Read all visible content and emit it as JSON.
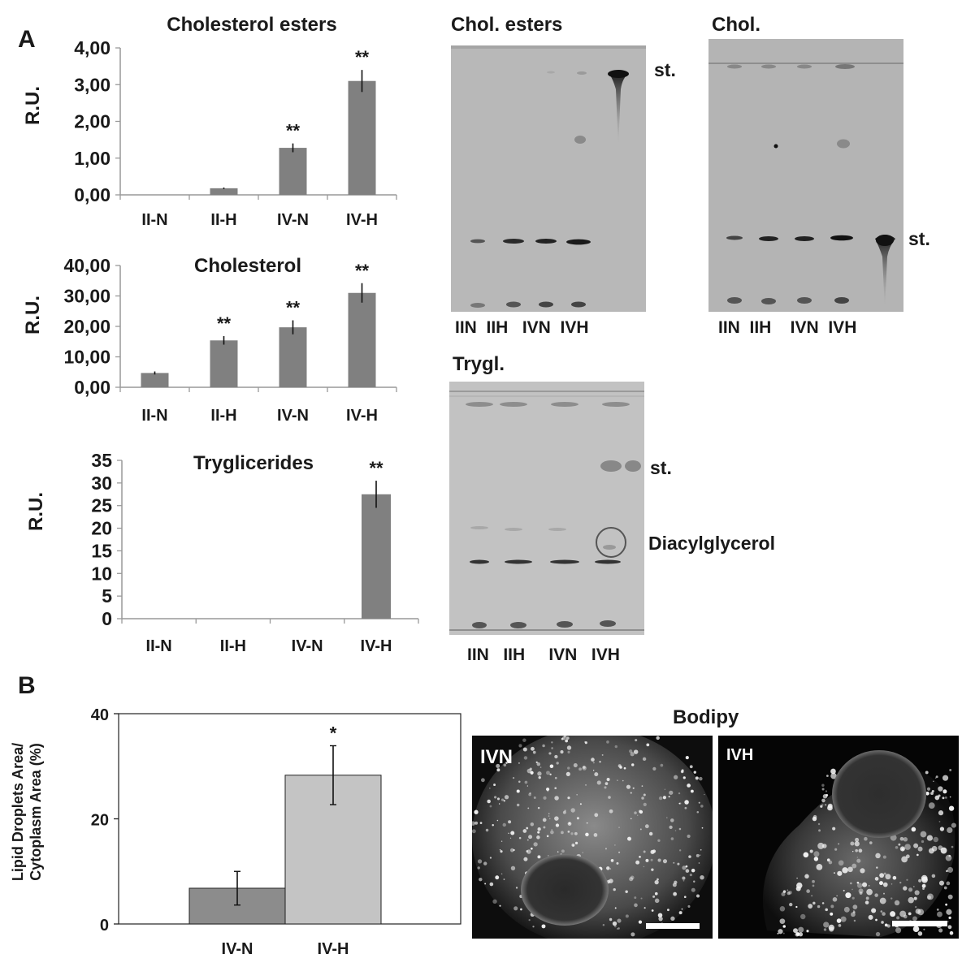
{
  "panels": {
    "a": "A",
    "b": "B"
  },
  "chart_data": [
    {
      "type": "bar",
      "title": "Cholesterol esters",
      "categories": [
        "II-N",
        "II-H",
        "IV-N",
        "IV-H"
      ],
      "values": [
        0.0,
        0.18,
        1.28,
        3.1
      ],
      "errors": [
        0.0,
        0.02,
        0.12,
        0.3
      ],
      "annotations": [
        "",
        "",
        "**",
        "**"
      ],
      "ylabel": "R.U.",
      "ylim": [
        0,
        4
      ],
      "yticks": [
        "0,00",
        "1,00",
        "2,00",
        "3,00",
        "4,00"
      ],
      "grid": false,
      "bar_color": "#808080"
    },
    {
      "type": "bar",
      "title": "Cholesterol",
      "categories": [
        "II-N",
        "II-H",
        "IV-N",
        "IV-H"
      ],
      "values": [
        4.7,
        15.4,
        19.7,
        31.0
      ],
      "errors": [
        0.5,
        1.4,
        2.3,
        3.2
      ],
      "annotations": [
        "",
        "**",
        "**",
        "**"
      ],
      "ylabel": "R.U.",
      "ylim": [
        0,
        40
      ],
      "yticks": [
        "0,00",
        "10,00",
        "20,00",
        "30,00",
        "40,00"
      ],
      "grid": false,
      "bar_color": "#808080"
    },
    {
      "type": "bar",
      "title": "Tryglicerides",
      "categories": [
        "II-N",
        "II-H",
        "IV-N",
        "IV-H"
      ],
      "values": [
        0,
        0,
        0,
        27.5
      ],
      "errors": [
        0,
        0,
        0,
        3.0
      ],
      "annotations": [
        "",
        "",
        "",
        "**"
      ],
      "ylabel": "R.U.",
      "ylim": [
        0,
        35
      ],
      "yticks": [
        "0",
        "5",
        "10",
        "15",
        "20",
        "25",
        "30",
        "35"
      ],
      "grid": false,
      "bar_color": "#808080"
    },
    {
      "type": "bar",
      "categories": [
        "IV-N",
        "IV-H"
      ],
      "values": [
        6.8,
        28.3
      ],
      "errors": [
        3.2,
        5.6
      ],
      "annotations": [
        "",
        "*"
      ],
      "ylabel": "Lipid Droplets Area/ Cytoplasm Area (%)",
      "ylabel_lines": [
        "Lipid Droplets Area/",
        "Cytoplasm Area (%)"
      ],
      "ylim": [
        0,
        40
      ],
      "yticks": [
        "0",
        "20",
        "40"
      ],
      "grid": false,
      "colors": [
        "#8c8c8c",
        "#c4c4c4"
      ]
    }
  ],
  "tlc": {
    "esters": {
      "title": "Chol. esters",
      "std": "st.",
      "lanes": "IIN  IIH   IVN  IVH"
    },
    "chol": {
      "title": "Chol.",
      "std": "st.",
      "lanes": "IIN  IIH    IVN  IVH"
    },
    "trygl": {
      "title": "Trygl.",
      "std": "st.",
      "dag": "Diacylglycerol",
      "lanes": "IIN   IIH     IVN   IVH"
    }
  },
  "bodipy": {
    "title": "Bodipy",
    "left_label": "IVN",
    "right_label": "IVH"
  }
}
